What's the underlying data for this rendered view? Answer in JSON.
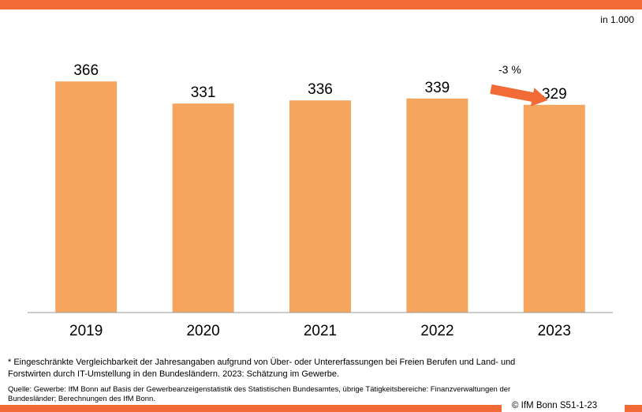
{
  "unit_label": "in 1.000",
  "chart_data": {
    "type": "bar",
    "categories": [
      "2019",
      "2020",
      "2021",
      "2022",
      "2023"
    ],
    "values": [
      366,
      331,
      336,
      339,
      329
    ],
    "data_labels": [
      "366",
      "331",
      "336",
      "339",
      "329"
    ],
    "ylim": [
      0,
      400
    ],
    "grid": false,
    "bar_color": "#f5a55e",
    "annotation": {
      "text": "-3 %",
      "from_category": "2022",
      "to_category": "2023",
      "arrow_color": "#f26a35"
    }
  },
  "footnote": "* Eingeschränkte Vergleichbarkeit der Jahresangaben aufgrund von Über- oder Untererfassungen bei Freien Berufen und Land- und Forstwirten  durch IT-Umstellung in den Bundesländern. 2023: Schätzung im Gewerbe.",
  "source": "Quelle:  Gewerbe: IfM Bonn auf Basis der Gewerbeanzeigenstatistik des Statistischen Bundesamtes, übrige Tätigkeitsbereiche: Finanzverwaltungen der Bundesländer;  Berechnungen des IfM Bonn.",
  "copyright": "© IfM  Bonn S51-1-23",
  "colors": {
    "accent": "#f26a35",
    "bar": "#f5a55e",
    "axis": "#999999"
  }
}
